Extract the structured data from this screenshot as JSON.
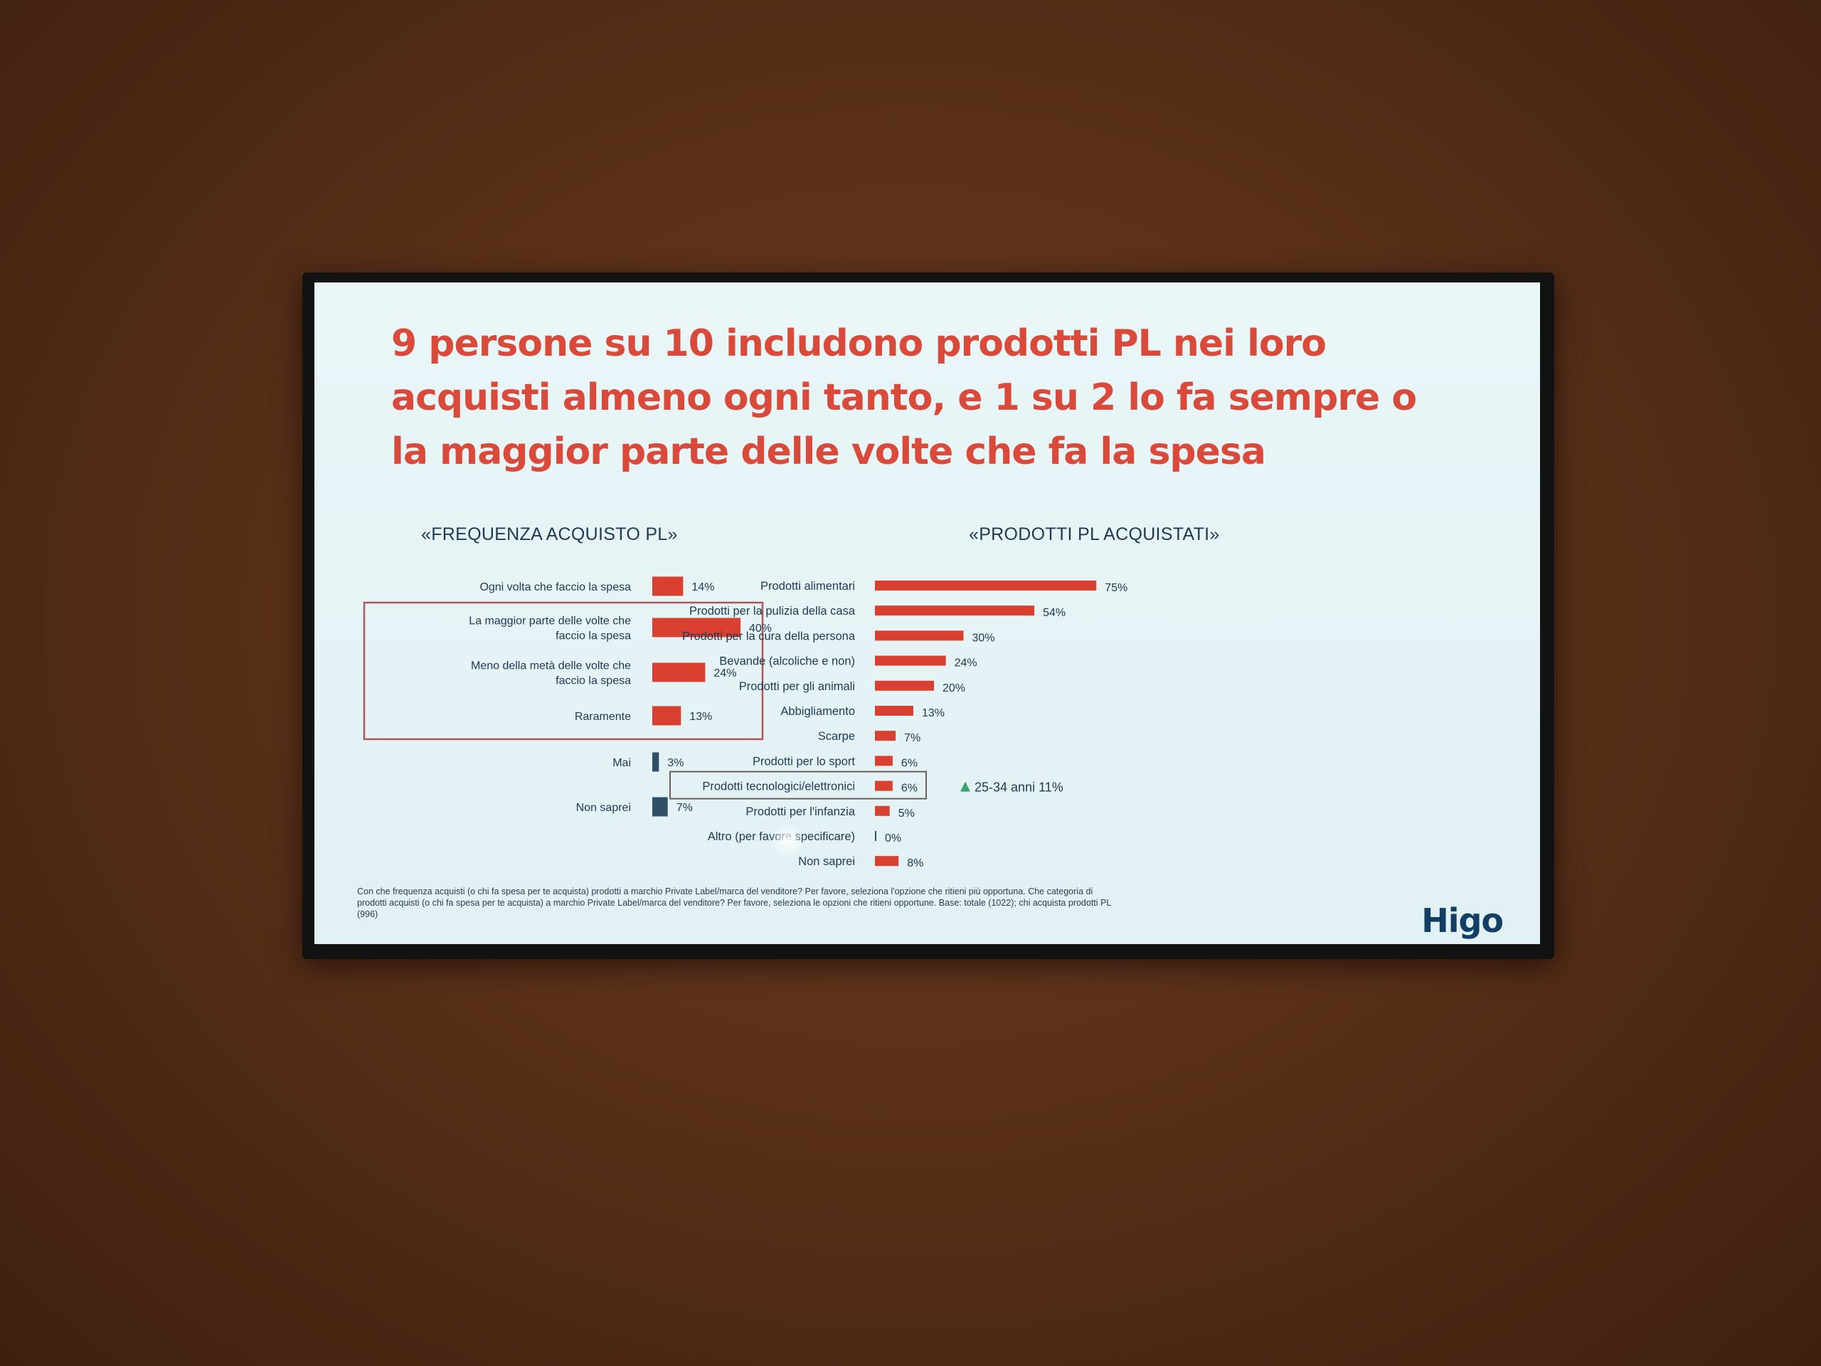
{
  "slide": {
    "title": "9 persone su 10 includono prodotti PL nei loro acquisti almeno ogni tanto, e 1 su 2 lo fa sempre o la maggior parte delle volte che fa la spesa",
    "footnote": "Con che frequenza acquisti (o chi fa spesa per te acquista) prodotti a marchio Private Label/marca del venditore? Per favore, seleziona l'opzione che ritieni più opportuna. Che categoria di prodotti acquisti (o chi fa spesa per te acquista) a marchio Private Label/marca del venditore? Per favore, seleziona le opzioni che ritieni opportune. Base: totale (1022); chi acquista prodotti PL (996)",
    "logo": "Higo"
  },
  "colors": {
    "bar": "#d9402f",
    "dark_bar": "#2e4f66",
    "title": "#d94a3a",
    "text": "#1d3a52",
    "up_arrow": "#3aa36a"
  },
  "chart_data": [
    {
      "type": "bar",
      "orientation": "horizontal",
      "title": "«FREQUENZA ACQUISTO PL»",
      "categories": [
        "Ogni volta che faccio la spesa",
        "La maggior parte delle volte che faccio la spesa",
        "Meno della metà delle volte che faccio la spesa",
        "Raramente",
        "Mai",
        "Non saprei"
      ],
      "values": [
        14,
        40,
        24,
        13,
        3,
        7
      ],
      "labels": [
        "14%",
        "40%",
        "24%",
        "13%",
        "3%",
        "7%"
      ],
      "bar_colors": [
        "#d9402f",
        "#d9402f",
        "#d9402f",
        "#d9402f",
        "#2e4f66",
        "#2e4f66"
      ],
      "highlight_box": [
        1,
        2,
        3
      ],
      "unit": "%"
    },
    {
      "type": "bar",
      "orientation": "horizontal",
      "title": "«PRODOTTI PL ACQUISTATI»",
      "categories": [
        "Prodotti alimentari",
        "Prodotti per la pulizia della casa",
        "Prodotti per la cura della persona",
        "Bevande (alcoliche e non)",
        "Prodotti per gli animali",
        "Abbigliamento",
        "Scarpe",
        "Prodotti per lo sport",
        "Prodotti tecnologici/elettronici",
        "Prodotti per l'infanzia",
        "Altro (per favore specificare)",
        "Non saprei"
      ],
      "values": [
        75,
        54,
        30,
        24,
        20,
        13,
        7,
        6,
        6,
        5,
        0,
        8
      ],
      "labels": [
        "75%",
        "54%",
        "30%",
        "24%",
        "20%",
        "13%",
        "7%",
        "6%",
        "6%",
        "5%",
        "0%",
        "8%"
      ],
      "highlight_box": [
        8
      ],
      "annotation": {
        "index": 8,
        "text": "25-34 anni 11%"
      },
      "unit": "%"
    }
  ]
}
